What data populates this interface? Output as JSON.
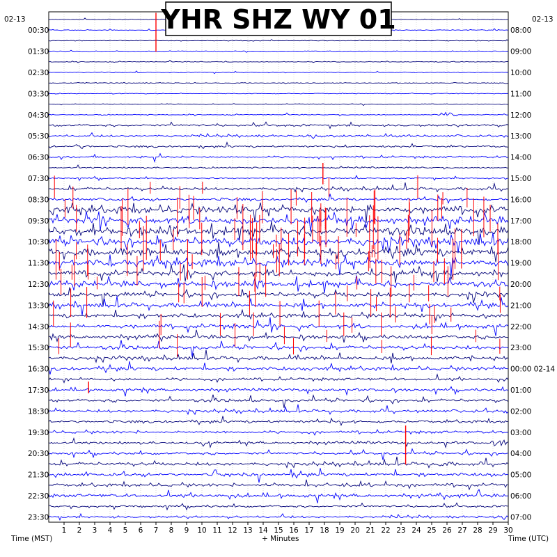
{
  "station_title": "YHR SHZ WY 01",
  "colors": {
    "trace_a": "#00007a",
    "trace_b": "#0000ff",
    "event": "#ff0000",
    "grid": "#c9c9c9",
    "frame": "#000000",
    "background": "#ffffff"
  },
  "chart_data": {
    "type": "helicorder",
    "title": "YHR SHZ WY 01",
    "xlabel": "+ Minutes",
    "left_axis_label": "Time (MST)",
    "right_axis_label": "Time (UTC)",
    "start_date_left": "02-13",
    "start_date_right": "02-13",
    "x_range_minutes": [
      0,
      30
    ],
    "x_ticks": [
      1,
      2,
      3,
      4,
      5,
      6,
      7,
      8,
      9,
      10,
      11,
      12,
      13,
      14,
      15,
      16,
      17,
      18,
      19,
      20,
      21,
      22,
      23,
      24,
      25,
      26,
      27,
      28,
      29,
      30
    ],
    "line_duration_minutes": 30,
    "line_count": 48,
    "trace_colors_cycle": [
      "#00007a",
      "#0000ff"
    ],
    "grid": true,
    "left_time_labels": [
      "00:30",
      "01:30",
      "02:30",
      "03:30",
      "04:30",
      "05:30",
      "06:30",
      "07:30",
      "08:30",
      "09:30",
      "10:30",
      "11:30",
      "12:30",
      "13:30",
      "14:30",
      "15:30",
      "16:30",
      "17:30",
      "18:30",
      "19:30",
      "20:30",
      "21:30",
      "22:30",
      "23:30"
    ],
    "right_time_labels": [
      "08:00",
      "09:00",
      "10:00",
      "11:00",
      "12:00",
      "13:00",
      "14:00",
      "15:00",
      "16:00",
      "17:00",
      "18:00",
      "19:00",
      "20:00",
      "21:00",
      "22:00",
      "23:00",
      "00:00 02-14",
      "01:00",
      "02:00",
      "03:00",
      "04:00",
      "05:00",
      "06:00",
      "07:00"
    ],
    "activity_by_hour_mst": [
      0.9,
      0.9,
      0.9,
      1.0,
      1.0,
      2.5,
      2.2,
      1.6,
      3.0,
      8.0,
      9.0,
      8.5,
      6.0,
      5.0,
      4.5,
      4.0,
      4.0,
      3.0,
      3.2,
      3.0,
      2.8,
      3.5,
      3.5,
      2.5
    ],
    "events": [
      {
        "minute": 26.0,
        "hour_mst": 4.5,
        "amplitude": 6,
        "color": "#00007a"
      },
      {
        "minute": 2.0,
        "hour_mst": 6.0,
        "amplitude": 5,
        "color": "#0000ff"
      },
      {
        "minute": 17.9,
        "hour_mst": 7.6,
        "amplitude": 22,
        "color": "#ff0000"
      },
      {
        "minute": 7.0,
        "hour_mst": 1.0,
        "amplitude": 40,
        "color": "#ff0000"
      },
      {
        "minute": 23.3,
        "hour_mst": 20.5,
        "amplitude": 40,
        "color": "#ff0000"
      },
      {
        "minute": 2.6,
        "hour_mst": 17.6,
        "amplitude": 12,
        "color": "#ff0000"
      },
      {
        "minute": 25.6,
        "hour_mst": 21.2,
        "amplitude": 6,
        "color": "#00007a"
      },
      {
        "minute": 29.6,
        "hour_mst": 19.8,
        "amplitude": 6,
        "color": "#0000ff"
      }
    ]
  }
}
